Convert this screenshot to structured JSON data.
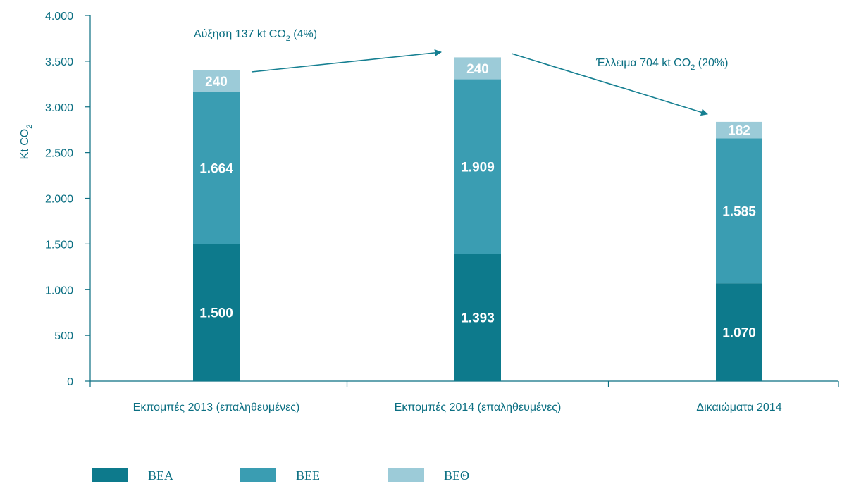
{
  "chart_data": {
    "type": "bar",
    "stacked": true,
    "categories": [
      "Εκπομπές 2013 (επαληθευμένες)",
      "Εκπομπές 2014 (επαληθευμένες)",
      "Δικαιώματα 2014"
    ],
    "series": [
      {
        "name": "ΒΕΑ",
        "values": [
          1500,
          1393,
          1070
        ],
        "labels": [
          "1.500",
          "1.393",
          "1.070"
        ],
        "color": "#0d7a8c"
      },
      {
        "name": "ΒΕΕ",
        "values": [
          1664,
          1909,
          1585
        ],
        "labels": [
          "1.664",
          "1.909",
          "1.585"
        ],
        "color": "#3a9db2"
      },
      {
        "name": "ΒΕΘ",
        "values": [
          240,
          240,
          182
        ],
        "labels": [
          "240",
          "240",
          "182"
        ],
        "color": "#9ccbd8"
      }
    ],
    "ylabel": "Kt CO",
    "ylabel_sub": "2",
    "ylim": [
      0,
      4000
    ],
    "yticks": [
      0,
      500,
      1000,
      1500,
      2000,
      2500,
      3000,
      3500,
      4000
    ],
    "ytick_labels": [
      "0",
      "500",
      "1.000",
      "1.500",
      "2.000",
      "2.500",
      "3.000",
      "3.500",
      "4.000"
    ],
    "grid": false,
    "legend_position": "bottom",
    "annotations": [
      {
        "text_main": "Αύξηση 137 kt CO",
        "text_sub": "2",
        "text_tail": " (4%)",
        "from": 0,
        "to": 1
      },
      {
        "text_main": "Έλλειμα 704 kt CO",
        "text_sub": "2",
        "text_tail": " (20%)",
        "from": 1,
        "to": 2
      }
    ],
    "colors": {
      "axis": "#0b6f82",
      "text": "#0b6f82",
      "arrow": "#157f91"
    }
  }
}
